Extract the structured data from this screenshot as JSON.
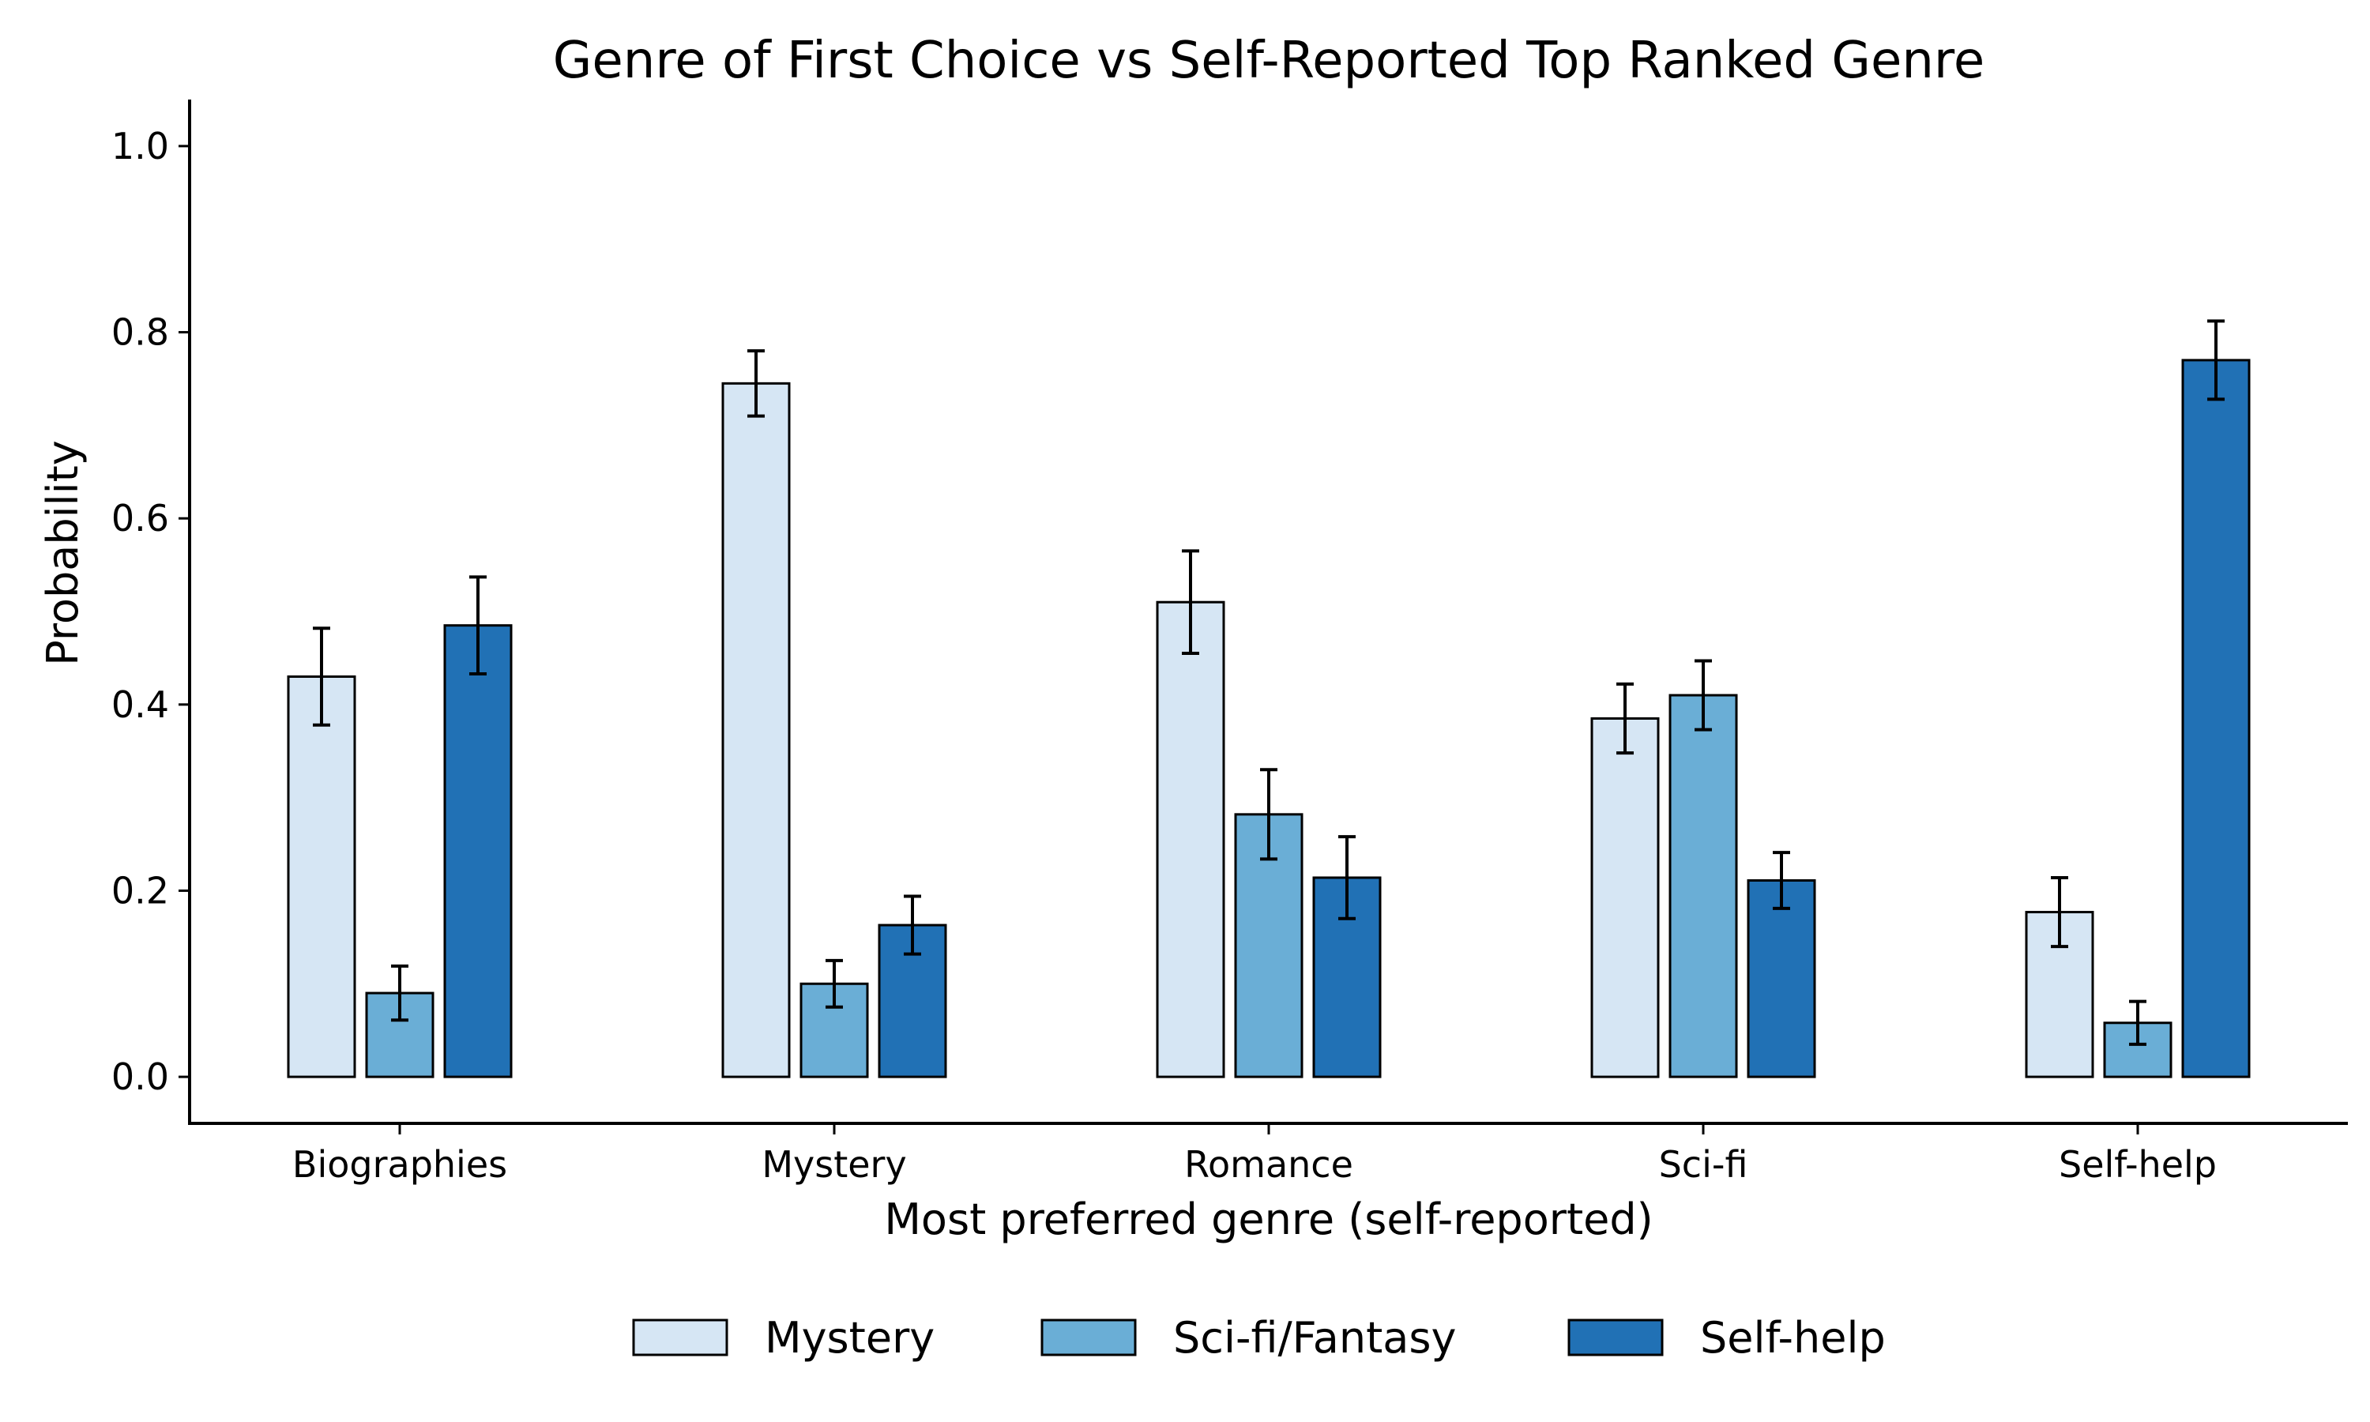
{
  "chart_data": {
    "type": "bar",
    "title": "Genre of First Choice vs Self-Reported Top Ranked Genre",
    "xlabel": "Most preferred genre (self-reported)",
    "ylabel": "Probability",
    "ylim": [
      -0.05,
      1.05
    ],
    "yticks": [
      "0.0",
      "0.2",
      "0.4",
      "0.6",
      "0.8",
      "1.0"
    ],
    "categories": [
      "Biographies",
      "Mystery",
      "Romance",
      "Sci-fi",
      "Self-help"
    ],
    "series": [
      {
        "name": "Mystery",
        "color": "#d6e6f4",
        "values": [
          0.43,
          0.745,
          0.51,
          0.385,
          0.177
        ],
        "err": [
          0.052,
          0.035,
          0.055,
          0.037,
          0.037
        ]
      },
      {
        "name": "Sci-fi/Fantasy",
        "color": "#6aaed6",
        "values": [
          0.09,
          0.1,
          0.282,
          0.41,
          0.058
        ],
        "err": [
          0.029,
          0.025,
          0.048,
          0.037,
          0.023
        ]
      },
      {
        "name": "Self-help",
        "color": "#2171b5",
        "values": [
          0.485,
          0.163,
          0.214,
          0.211,
          0.77
        ],
        "err": [
          0.052,
          0.031,
          0.044,
          0.03,
          0.042
        ]
      }
    ],
    "grid": false,
    "legend_position": "bottom-center"
  }
}
